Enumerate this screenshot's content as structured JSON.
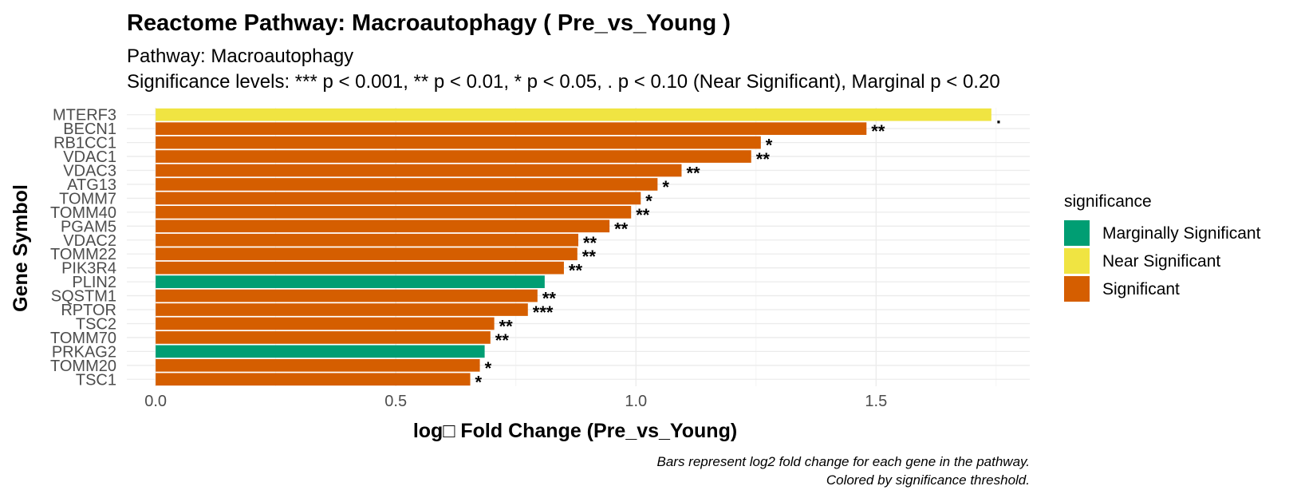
{
  "chart_data": {
    "type": "bar",
    "orientation": "horizontal",
    "title": "Reactome Pathway: Macroautophagy ( Pre_vs_Young )",
    "subtitle_lines": [
      "Pathway: Macroautophagy",
      "Significance levels: *** p < 0.001, ** p < 0.01, * p < 0.05, . p < 0.10 (Near Significant), Marginal p < 0.20"
    ],
    "xlabel": "log□ Fold Change (Pre_vs_Young)",
    "ylabel": "Gene Symbol",
    "xlim": [
      -0.06,
      1.82
    ],
    "xticks": [
      0.0,
      0.5,
      1.0,
      1.5
    ],
    "xtick_labels": [
      "0.0",
      "0.5",
      "1.0",
      "1.5"
    ],
    "grid": true,
    "legend": {
      "title": "significance",
      "position": "right",
      "entries": [
        {
          "label": "Marginally Significant",
          "color": "#009E73"
        },
        {
          "label": "Near Significant",
          "color": "#F0E442"
        },
        {
          "label": "Significant",
          "color": "#D55E00"
        }
      ]
    },
    "genes": [
      {
        "gene": "MTERF3",
        "value": 1.74,
        "significance": "Near Significant",
        "label": "."
      },
      {
        "gene": "BECN1",
        "value": 1.48,
        "significance": "Significant",
        "label": "**"
      },
      {
        "gene": "RB1CC1",
        "value": 1.26,
        "significance": "Significant",
        "label": "*"
      },
      {
        "gene": "VDAC1",
        "value": 1.24,
        "significance": "Significant",
        "label": "**"
      },
      {
        "gene": "VDAC3",
        "value": 1.095,
        "significance": "Significant",
        "label": "**"
      },
      {
        "gene": "ATG13",
        "value": 1.045,
        "significance": "Significant",
        "label": "*"
      },
      {
        "gene": "TOMM7",
        "value": 1.01,
        "significance": "Significant",
        "label": "*"
      },
      {
        "gene": "TOMM40",
        "value": 0.99,
        "significance": "Significant",
        "label": "**"
      },
      {
        "gene": "PGAM5",
        "value": 0.945,
        "significance": "Significant",
        "label": "**"
      },
      {
        "gene": "VDAC2",
        "value": 0.88,
        "significance": "Significant",
        "label": "**"
      },
      {
        "gene": "TOMM22",
        "value": 0.878,
        "significance": "Significant",
        "label": "**"
      },
      {
        "gene": "PIK3R4",
        "value": 0.85,
        "significance": "Significant",
        "label": "**"
      },
      {
        "gene": "PLIN2",
        "value": 0.81,
        "significance": "Marginally Significant",
        "label": ""
      },
      {
        "gene": "SQSTM1",
        "value": 0.795,
        "significance": "Significant",
        "label": "**"
      },
      {
        "gene": "RPTOR",
        "value": 0.775,
        "significance": "Significant",
        "label": "***"
      },
      {
        "gene": "TSC2",
        "value": 0.705,
        "significance": "Significant",
        "label": "**"
      },
      {
        "gene": "TOMM70",
        "value": 0.697,
        "significance": "Significant",
        "label": "**"
      },
      {
        "gene": "PRKAG2",
        "value": 0.685,
        "significance": "Marginally Significant",
        "label": ""
      },
      {
        "gene": "TOMM20",
        "value": 0.675,
        "significance": "Significant",
        "label": "*"
      },
      {
        "gene": "TSC1",
        "value": 0.655,
        "significance": "Significant",
        "label": "*"
      }
    ],
    "caption_lines": [
      "Bars represent log2 fold change for each gene in the pathway.",
      "Colored by significance threshold."
    ]
  }
}
